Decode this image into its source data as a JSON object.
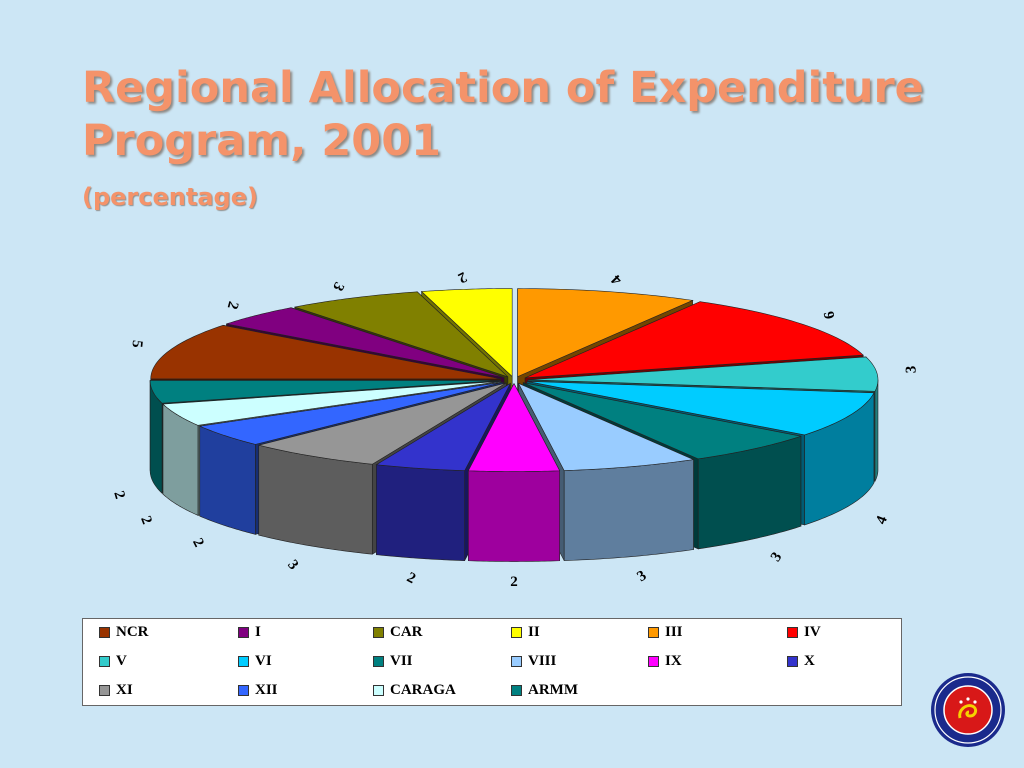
{
  "slide": {
    "title_line1": "Regional Allocation of Expenditure",
    "title_line2": "Program, 2001",
    "subtitle": "(percentage)"
  },
  "chart_data": {
    "type": "pie",
    "style": "3d-exploded",
    "title": "Regional Allocation of Expenditure Program, 2001",
    "subtitle": "(percentage)",
    "legend_position": "bottom",
    "categories": [
      "NCR",
      "I",
      "CAR",
      "II",
      "III",
      "IV",
      "V",
      "VI",
      "VII",
      "VIII",
      "IX",
      "X",
      "XI",
      "XII",
      "CARAGA",
      "ARMM"
    ],
    "values": [
      5,
      2,
      3,
      2,
      4,
      6,
      3,
      4,
      3,
      3,
      2,
      2,
      3,
      2,
      2,
      2
    ],
    "colors": [
      "#993300",
      "#800080",
      "#808000",
      "#ffff00",
      "#ff9900",
      "#ff0000",
      "#33cccc",
      "#00ccff",
      "#008080",
      "#99ccff",
      "#ff00ff",
      "#3333cc",
      "#969696",
      "#3366ff",
      "#ccffff",
      "#008080"
    ]
  }
}
